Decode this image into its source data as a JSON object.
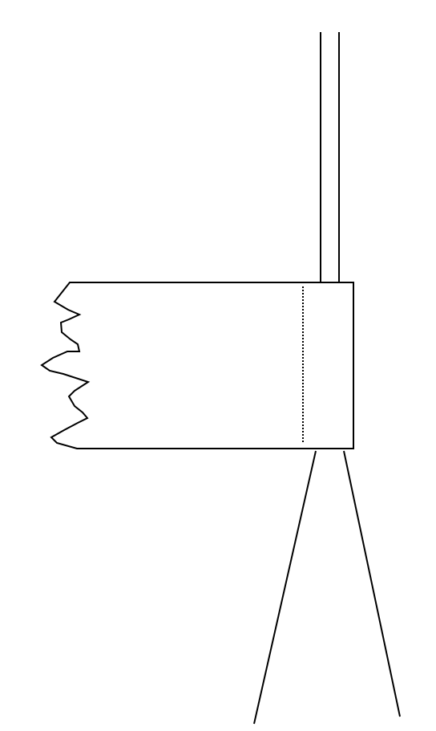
{
  "diagram": {
    "background_color": "#ffffff",
    "line_color": "#000000",
    "parts": [
      "vertical-double-rod",
      "torn-rectangular-block",
      "dotted-divider-line",
      "diverging-lower-lines"
    ]
  }
}
